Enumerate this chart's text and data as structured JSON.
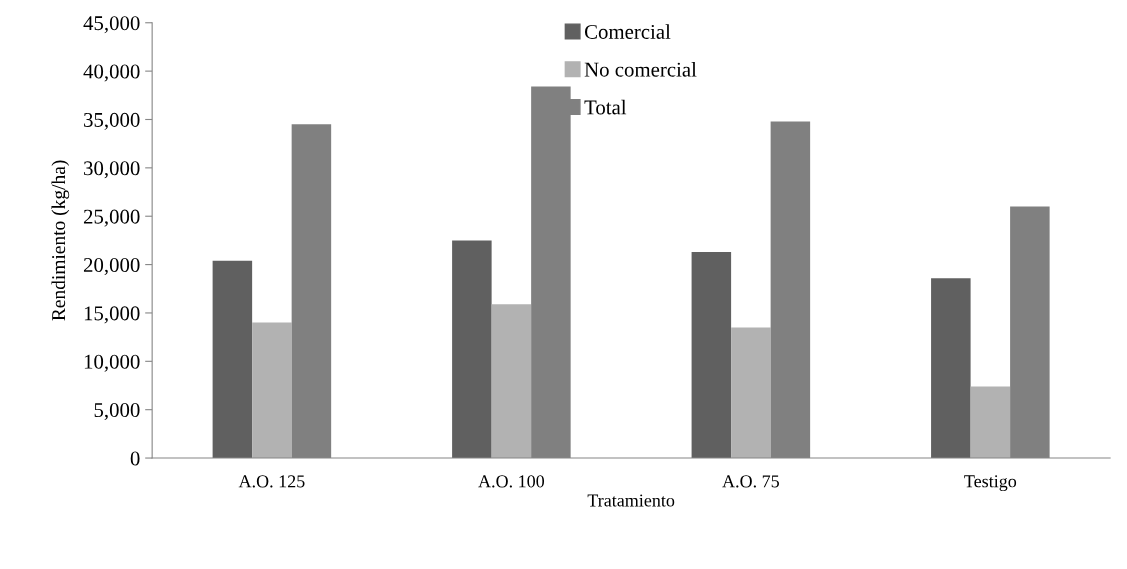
{
  "chart_data": {
    "type": "bar",
    "xlabel": "Tratamiento",
    "ylabel": "Rendimiento (kg/ha)",
    "categories": [
      "A.O. 125",
      "A.O. 100",
      "A.O. 75",
      "Testigo"
    ],
    "series": [
      {
        "name": "Comercial",
        "color": "#606060",
        "values": [
          20400,
          22500,
          21300,
          18600
        ]
      },
      {
        "name": "No comercial",
        "color": "#b2b2b2",
        "values": [
          14000,
          15900,
          13500,
          7400
        ]
      },
      {
        "name": "Total",
        "color": "#808080",
        "values": [
          34500,
          38400,
          34800,
          26000
        ]
      }
    ],
    "ylim": [
      0,
      45000
    ],
    "yticks": [
      {
        "value": 0,
        "label": "0"
      },
      {
        "value": 5000,
        "label": "5,000"
      },
      {
        "value": 10000,
        "label": "10,000"
      },
      {
        "value": 15000,
        "label": "15,000"
      },
      {
        "value": 20000,
        "label": "20,000"
      },
      {
        "value": 25000,
        "label": "25,000"
      },
      {
        "value": 30000,
        "label": "30,000"
      },
      {
        "value": 35000,
        "label": "35,000"
      },
      {
        "value": 40000,
        "label": "40,000"
      },
      {
        "value": 45000,
        "label": "45,000"
      }
    ],
    "grid": false,
    "legend": "top"
  }
}
